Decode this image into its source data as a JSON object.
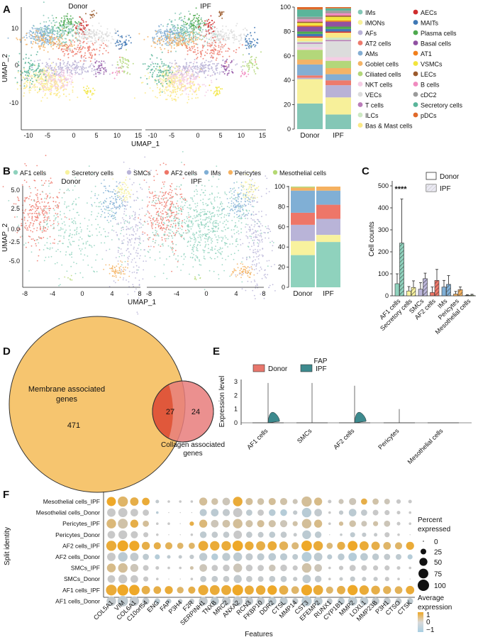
{
  "panels": {
    "A": {
      "letter": "A",
      "umap_titles": [
        "Donor",
        "IPF"
      ],
      "umap_xlabel": "UMAP_1",
      "umap_ylabel": "UMAP_2",
      "umap_xticks": [
        "-10",
        "-5",
        "0",
        "5",
        "10",
        "15"
      ],
      "umap_yticks": [
        "10",
        "0",
        "-10"
      ],
      "bar_conditions": [
        "Donor",
        "IPF"
      ],
      "bar_yticks": [
        "0",
        "20",
        "40",
        "60",
        "80",
        "100"
      ],
      "legend": [
        {
          "label": "IMs",
          "color": "#84c7b6"
        },
        {
          "label": "iMONs",
          "color": "#f7f09a"
        },
        {
          "label": "AFs",
          "color": "#b9b2d6"
        },
        {
          "label": "AT2 cells",
          "color": "#ed7a6c"
        },
        {
          "label": "AMs",
          "color": "#84aed3"
        },
        {
          "label": "Goblet cells",
          "color": "#f4b366"
        },
        {
          "label": "Ciliated cells",
          "color": "#b3d77a"
        },
        {
          "label": "NKT cells",
          "color": "#f5cde4"
        },
        {
          "label": "VECs",
          "color": "#dcdcdc"
        },
        {
          "label": "T cells",
          "color": "#b97cb8"
        },
        {
          "label": "ILCs",
          "color": "#cde9c3"
        },
        {
          "label": "Bas & Mast cells",
          "color": "#fbe986"
        },
        {
          "label": "AECs",
          "color": "#cf2d2d"
        },
        {
          "label": "MAITs",
          "color": "#3f78b5"
        },
        {
          "label": "Plasma cells",
          "color": "#4ea94e"
        },
        {
          "label": "Basal cells",
          "color": "#9051a2"
        },
        {
          "label": "AT1",
          "color": "#f17f1c"
        },
        {
          "label": "VSMCs",
          "color": "#f2e53c"
        },
        {
          "label": "LECs",
          "color": "#9b5a2c"
        },
        {
          "label": "B cells",
          "color": "#f08bbf"
        },
        {
          "label": "cDC2",
          "color": "#9a9a9a"
        },
        {
          "label": "Secretory cells",
          "color": "#5ab59a"
        },
        {
          "label": "pDCs",
          "color": "#e0692a"
        }
      ]
    },
    "B": {
      "letter": "B",
      "legend": [
        {
          "label": "AF1 cells",
          "color": "#8fd2bd"
        },
        {
          "label": "Secretory cells",
          "color": "#f8f29e"
        },
        {
          "label": "SMCs",
          "color": "#b9b4d8"
        },
        {
          "label": "AF2 cells",
          "color": "#ee7668"
        },
        {
          "label": "IMs",
          "color": "#80afd5"
        },
        {
          "label": "Pericytes",
          "color": "#f5b160"
        },
        {
          "label": "Mesothelial cells",
          "color": "#b5d973"
        }
      ],
      "umap_titles": [
        "Donor",
        "IPF"
      ],
      "umap_xlabel": "UMAP_1",
      "umap_ylabel": "UMAP_2",
      "umap_xticks": [
        "-8",
        "-4",
        "0",
        "4",
        "8"
      ],
      "umap_yticks": [
        "5.0",
        "2.5",
        "0.0",
        "-2.5",
        "-5.0"
      ],
      "bar_conditions": [
        "Donor",
        "IPF"
      ],
      "bar_yticks": [
        "0",
        "20",
        "40",
        "60",
        "80",
        "100"
      ],
      "composition": {
        "Donor": [
          32,
          14,
          16,
          12,
          22,
          3,
          1
        ],
        "IPF": [
          45,
          7,
          16,
          14,
          14,
          4,
          0
        ]
      }
    },
    "C": {
      "letter": "C",
      "ylabel": "Cell counts",
      "yticks": [
        "0",
        "100",
        "200",
        "300",
        "400",
        "500"
      ],
      "legend": [
        "Donor",
        "IPF"
      ],
      "significance": "****",
      "chart_data": {
        "type": "bar",
        "title": "",
        "xlabel": "",
        "ylabel": "Cell counts",
        "ylim": [
          0,
          500
        ],
        "categories": [
          "AF1 cells",
          "Secretory cells",
          "SMCs",
          "AF2 cells",
          "IMs",
          "Pericytes",
          "Mesothelial cells"
        ],
        "colors": [
          "#8fd2bd",
          "#f8f29e",
          "#b9b4d8",
          "#ee7668",
          "#80afd5",
          "#f5b160",
          "#b5d973"
        ],
        "series": [
          {
            "name": "Donor",
            "values": [
              55,
              22,
              30,
              15,
              40,
              8,
              2
            ],
            "errors": [
              45,
              20,
              30,
              25,
              30,
              12,
              3
            ]
          },
          {
            "name": "IPF",
            "values": [
              240,
              38,
              78,
              70,
              52,
              28,
              3
            ],
            "errors": [
              200,
              30,
              25,
              50,
              40,
              12,
              4
            ]
          }
        ]
      }
    },
    "D": {
      "letter": "D",
      "membrane_label_1": "Membrane associated",
      "membrane_label_2": "genes",
      "membrane_only": "471",
      "overlap": "27",
      "collagen_only": "24",
      "collagen_label_1": "Collagen associated",
      "collagen_label_2": "genes"
    },
    "E": {
      "letter": "E",
      "title": "FAP",
      "legend": [
        {
          "label": "Donor",
          "color": "#e8766c"
        },
        {
          "label": "IPF",
          "color": "#3d8a8e"
        }
      ],
      "ylabel": "Expression level",
      "yticks": [
        "3",
        "2",
        "1",
        "0"
      ],
      "categories": [
        "AF1 cells",
        "SMCs",
        "AF2 cells",
        "Pericytes",
        "Mesothelial cells"
      ]
    },
    "F": {
      "letter": "F",
      "ylabel": "Split identity",
      "xlabel": "Features",
      "rows": [
        "Mesothelial cells_IPF",
        "Mesothelial cells_Donor",
        "Pericytes_IPF",
        "Pericytes_Donor",
        "AF2 cells_IPF",
        "AF2 cells_Donor",
        "SMCs_IPF",
        "SMCs_Donor",
        "AF1 cells_IPF",
        "AF1 cells_Donor"
      ],
      "features": [
        "COL5A1",
        "VIM",
        "COL6A1",
        "C10orf54",
        "ENG",
        "FAP",
        "P3H4",
        "F2R",
        "SERPINH1",
        "TNXB",
        "MRC2",
        "ANXA2",
        "RCN3",
        "FKBP10",
        "DDR2",
        "CTSL",
        "MMP14",
        "CST3",
        "EFEMP2",
        "RUNX1",
        "CYP1B1",
        "MMP2",
        "LOXL1",
        "MMP23B",
        "P3H1",
        "CTSO",
        "CTSK"
      ],
      "size_legend_title_1": "Percent",
      "size_legend_title_2": "expressed",
      "size_legend": [
        "0",
        "25",
        "50",
        "75",
        "100"
      ],
      "color_legend_title_1": "Average",
      "color_legend_title_2": "expression",
      "color_legend": [
        "1",
        "0",
        "−1"
      ]
    }
  }
}
